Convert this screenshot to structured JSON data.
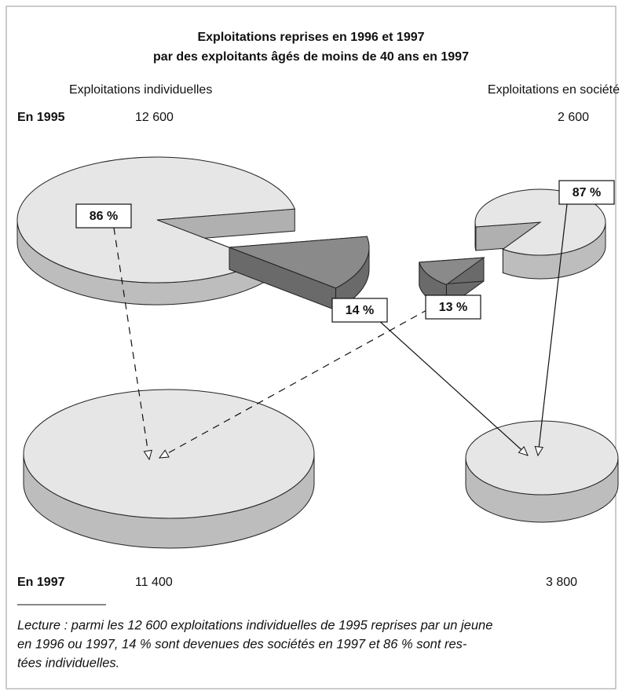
{
  "title": [
    "Exploitations reprises en 1996 et 1997",
    "par des exploitants âgés de moins de 40 ans en 1997"
  ],
  "columns": [
    "Exploitations individuelles",
    "Exploitations en société"
  ],
  "year_1995": {
    "label": "En 1995",
    "individual": "12 600",
    "company": "2 600"
  },
  "year_1997": {
    "label": "En 1997",
    "individual": "11 400",
    "company": "3 800"
  },
  "pies": [
    {
      "kept": {
        "value": 86,
        "label": "86 %"
      },
      "moved": {
        "value": 14,
        "label": "14 %"
      }
    },
    {
      "kept": {
        "value": 87,
        "label": "87 %"
      },
      "moved": {
        "value": 13,
        "label": "13 %"
      }
    }
  ],
  "note": [
    "Lecture : parmi les 12 600 exploitations individuelles de 1995 reprises par un jeune",
    "en 1996 ou 1997, 14 % sont devenues des sociétés en 1997 et  86 % sont res-",
    "tées individuelles."
  ]
}
